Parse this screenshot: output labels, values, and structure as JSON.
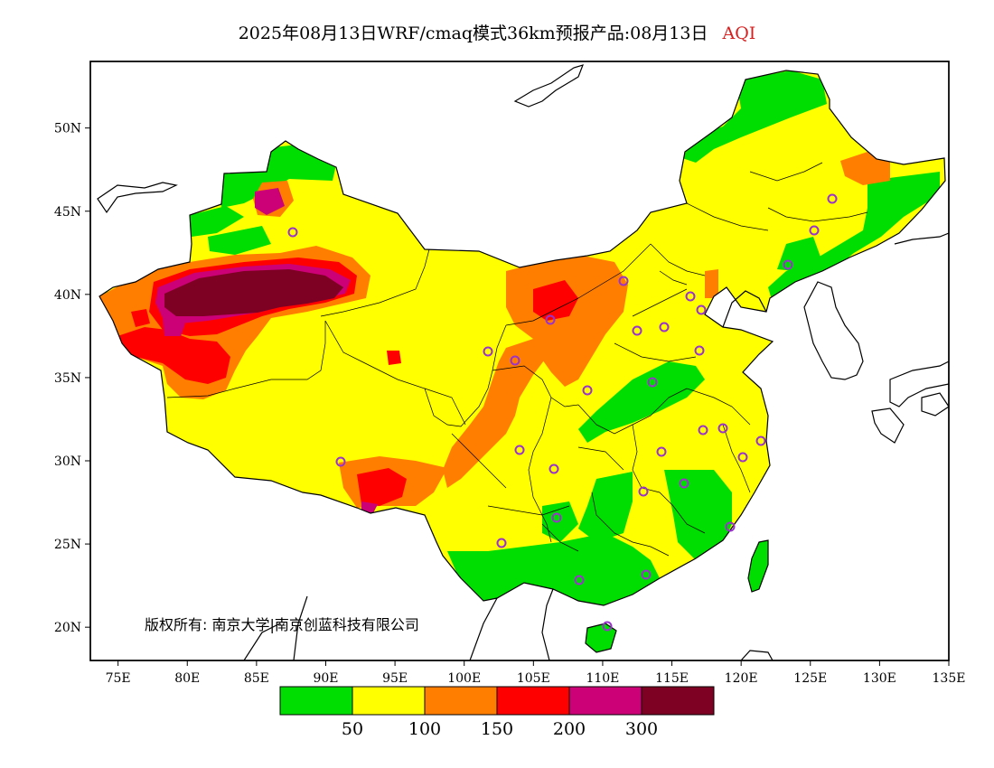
{
  "title": {
    "text": "2025年08月13日WRF/cmaq模式36km预报产品:08月13日",
    "variable": "AQI"
  },
  "map": {
    "lon_range": [
      73,
      135
    ],
    "lat_range": [
      18,
      54
    ],
    "x_ticks": [
      "75E",
      "80E",
      "85E",
      "90E",
      "95E",
      "100E",
      "105E",
      "110E",
      "115E",
      "120E",
      "125E",
      "130E",
      "135E"
    ],
    "y_ticks": [
      "50N",
      "45N",
      "40N",
      "35N",
      "30N",
      "25N",
      "20N"
    ],
    "copyright": "版权所有: 南京大学|南京创蓝科技有限公司"
  },
  "legend": {
    "colors": [
      "#00dd00",
      "#ffff00",
      "#ff7e00",
      "#ff0000",
      "#cc0077",
      "#7e0023"
    ],
    "labels": [
      "50",
      "100",
      "150",
      "200",
      "300"
    ]
  },
  "colors": {
    "good": "#00dd00",
    "moderate": "#ffff00",
    "unhealthy_sensitive": "#ff7e00",
    "unhealthy": "#ff0000",
    "very_unhealthy": "#cc0077",
    "hazardous": "#7e0023",
    "station_ring": "#9933cc"
  }
}
